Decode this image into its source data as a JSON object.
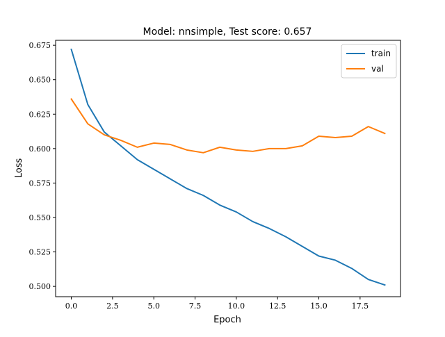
{
  "chart_data": {
    "type": "line",
    "title": "Model: nnsimple, Test score: 0.657",
    "xlabel": "Epoch",
    "ylabel": "Loss",
    "xlim": [
      -0.95,
      19.95
    ],
    "ylim": [
      0.4925,
      0.6786
    ],
    "x_ticks": [
      0.0,
      2.5,
      5.0,
      7.5,
      10.0,
      12.5,
      15.0,
      17.5
    ],
    "x_tick_labels": [
      "0.0",
      "2.5",
      "5.0",
      "7.5",
      "10.0",
      "12.5",
      "15.0",
      "17.5"
    ],
    "y_ticks": [
      0.5,
      0.525,
      0.55,
      0.575,
      0.6,
      0.625,
      0.65,
      0.675
    ],
    "y_tick_labels": [
      "0.500",
      "0.525",
      "0.550",
      "0.575",
      "0.600",
      "0.625",
      "0.650",
      "0.675"
    ],
    "grid": false,
    "legend_position": "top-right",
    "x": [
      0,
      1,
      2,
      3,
      4,
      5,
      6,
      7,
      8,
      9,
      10,
      11,
      12,
      13,
      14,
      15,
      16,
      17,
      18,
      19
    ],
    "series": [
      {
        "name": "train",
        "color": "#1f77b4",
        "values": [
          0.672,
          0.632,
          0.612,
          0.602,
          0.592,
          0.585,
          0.578,
          0.571,
          0.566,
          0.559,
          0.554,
          0.547,
          0.542,
          0.536,
          0.529,
          0.522,
          0.519,
          0.513,
          0.505,
          0.501
        ]
      },
      {
        "name": "val",
        "color": "#ff7f0e",
        "values": [
          0.636,
          0.618,
          0.61,
          0.606,
          0.601,
          0.604,
          0.603,
          0.599,
          0.597,
          0.601,
          0.599,
          0.598,
          0.6,
          0.6,
          0.602,
          0.609,
          0.608,
          0.609,
          0.616,
          0.611
        ]
      }
    ]
  }
}
